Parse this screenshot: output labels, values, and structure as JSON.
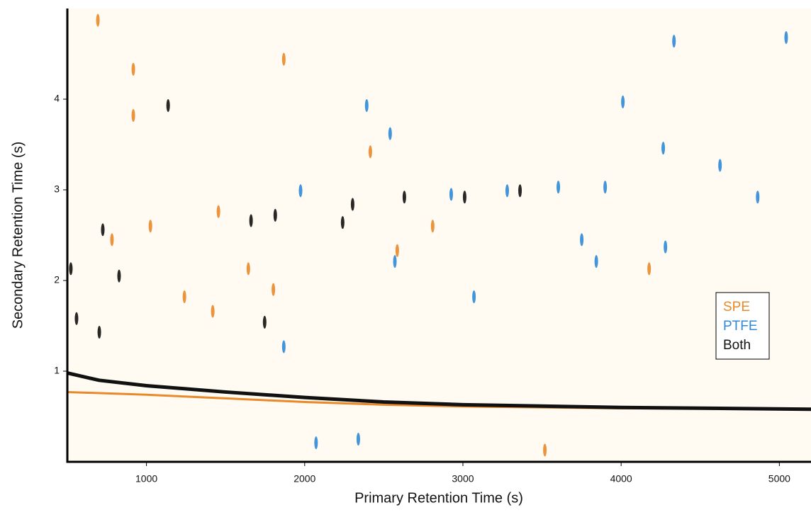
{
  "chart_data": {
    "type": "scatter",
    "x_label": "Primary Retention Time (s)",
    "y_label": "Secondary Retention Time (s)",
    "xlim": [
      500,
      5200
    ],
    "ylim": [
      0,
      5
    ],
    "xticks": [
      1000,
      2000,
      3000,
      4000,
      5000
    ],
    "yticks": [
      1,
      2,
      3,
      4
    ],
    "legend": "right",
    "series": [
      {
        "name": "SPE",
        "color": "#e8892a",
        "x": [
          917,
          917,
          2415,
          782,
          1025,
          1455,
          1644,
          1240,
          1802,
          1419,
          2585,
          4177,
          693,
          1868,
          3518,
          2809
        ],
        "y": [
          4.33,
          3.82,
          3.42,
          2.45,
          2.6,
          2.76,
          2.13,
          1.82,
          1.9,
          1.66,
          2.33,
          2.13,
          4.87,
          4.44,
          0.13,
          2.6
        ],
        "curve": {
          "x": [
            500,
            1000,
            1500,
            2000,
            2500,
            3000,
            4000,
            5200
          ],
          "y": [
            0.77,
            0.74,
            0.7,
            0.66,
            0.63,
            0.61,
            0.59,
            0.58
          ]
        }
      },
      {
        "name": "PTFE",
        "color": "#2e8ad8",
        "x": [
          2392,
          2339,
          4334,
          5043,
          4011,
          4266,
          4625,
          2540,
          1974,
          2926,
          3280,
          3603,
          3899,
          2570,
          3843,
          3070,
          1868,
          4280,
          3751,
          4863,
          2072
        ],
        "y": [
          3.93,
          0.25,
          4.64,
          4.68,
          3.97,
          3.46,
          3.27,
          3.62,
          2.99,
          2.95,
          2.99,
          3.03,
          3.03,
          2.21,
          2.21,
          1.82,
          1.27,
          2.37,
          2.45,
          2.92,
          0.21
        ]
      },
      {
        "name": "Both",
        "color": "#111111",
        "x": [
          1137,
          724,
          827,
          522,
          702,
          1661,
          3011,
          3361,
          2303,
          2630,
          2240,
          1814,
          1747,
          558
        ],
        "y": [
          3.93,
          2.56,
          2.05,
          2.13,
          1.43,
          2.66,
          2.92,
          2.99,
          2.84,
          2.92,
          2.64,
          2.72,
          1.54,
          1.58
        ],
        "curve": {
          "x": [
            500,
            700,
            1000,
            1500,
            2000,
            2500,
            3000,
            4000,
            5200
          ],
          "y": [
            0.98,
            0.9,
            0.84,
            0.77,
            0.71,
            0.66,
            0.63,
            0.6,
            0.58
          ]
        }
      }
    ]
  }
}
